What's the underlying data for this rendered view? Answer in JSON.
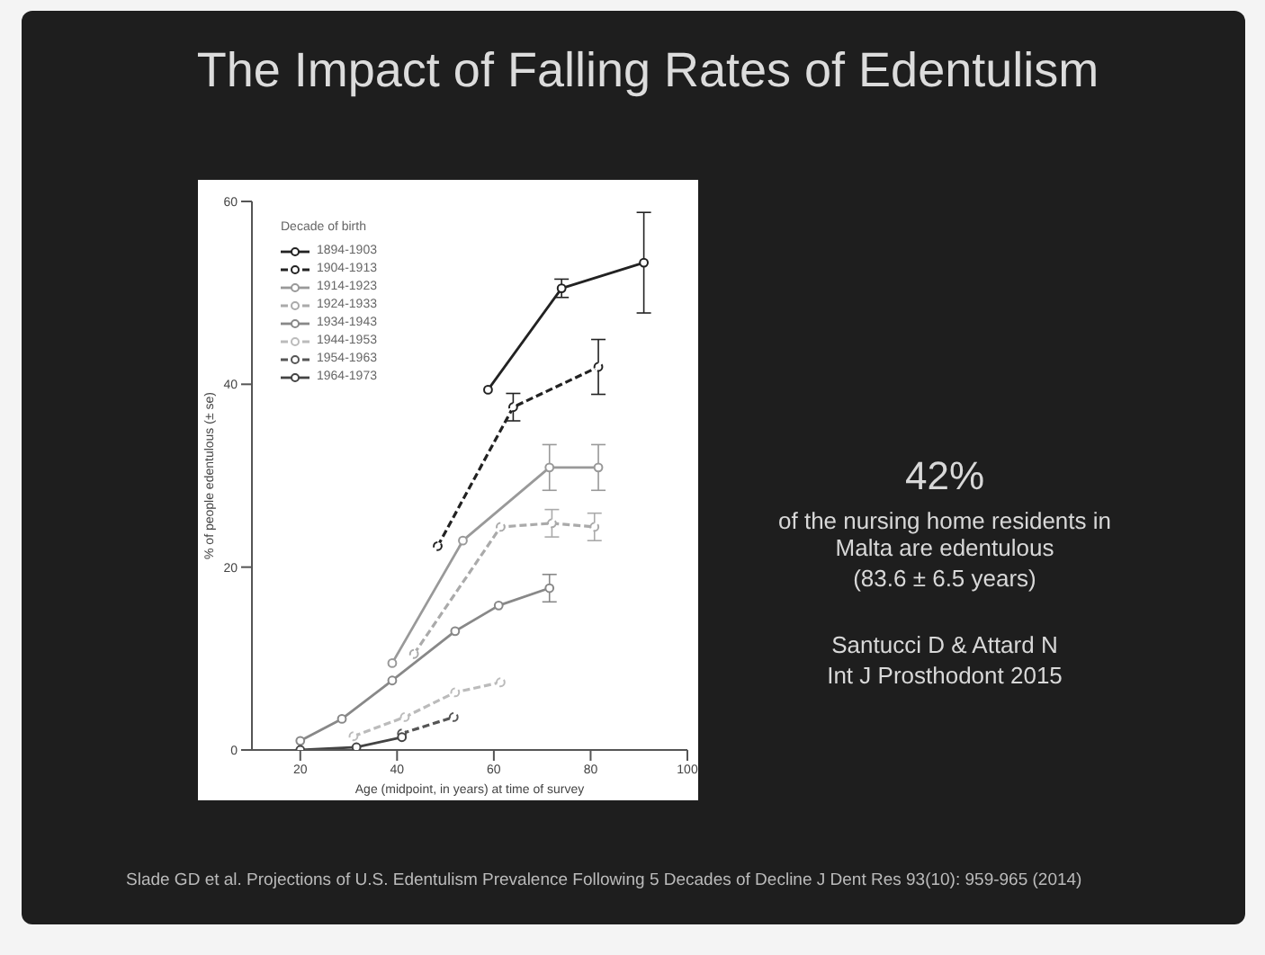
{
  "chart_data": {
    "type": "line",
    "title": "The Impact of Falling Rates of Edentulism",
    "xlabel": "Age (midpoint, in years) at time of survey",
    "ylabel": "% of people edentulous (± se)",
    "legend_title": "Decade of birth",
    "legend": "top left",
    "marker": "circle",
    "xlim": [
      10,
      100
    ],
    "xticks": [
      20,
      40,
      60,
      80,
      100
    ],
    "ylim": [
      0,
      60
    ],
    "yticks": [
      0,
      20,
      40,
      60
    ],
    "series": [
      {
        "name": "1894-1903",
        "color": "#222222",
        "line_style": "solid",
        "x": [
          58.8,
          74,
          91
        ],
        "values": [
          39.4,
          50.5,
          53.3
        ],
        "errors": [
          null,
          1,
          5.5
        ]
      },
      {
        "name": "1904-1913",
        "color": "#222222",
        "line_style": "dashed",
        "x": [
          48.4,
          64,
          81.6
        ],
        "values": [
          22.3,
          37.5,
          41.9
        ],
        "errors": [
          null,
          1.5,
          3
        ]
      },
      {
        "name": "1914-1923",
        "color": "#999999",
        "line_style": "solid",
        "x": [
          39,
          53.6,
          71.5,
          81.6
        ],
        "values": [
          9.5,
          22.9,
          30.9,
          30.9
        ],
        "errors": [
          null,
          null,
          2.5,
          2.5
        ]
      },
      {
        "name": "1924-1933",
        "color": "#aaaaaa",
        "line_style": "dashed",
        "x": [
          43.5,
          61.4,
          72,
          80.8
        ],
        "values": [
          10.5,
          24.4,
          24.8,
          24.4
        ],
        "errors": [
          null,
          null,
          1.5,
          1.5
        ]
      },
      {
        "name": "1934-1943",
        "color": "#888888",
        "line_style": "solid",
        "x": [
          20,
          28.6,
          39,
          52,
          61,
          71.5
        ],
        "values": [
          1,
          3.4,
          7.6,
          13,
          15.8,
          17.7
        ],
        "errors": [
          null,
          null,
          null,
          null,
          null,
          1.5
        ]
      },
      {
        "name": "1944-1953",
        "color": "#bbbbbb",
        "line_style": "dashed",
        "x": [
          31,
          41.6,
          52,
          61.4
        ],
        "values": [
          1.5,
          3.6,
          6.3,
          7.4
        ],
        "errors": [
          null,
          null,
          null,
          null
        ]
      },
      {
        "name": "1954-1963",
        "color": "#555555",
        "line_style": "dashed",
        "x": [
          41,
          51.7
        ],
        "values": [
          1.8,
          3.6
        ],
        "errors": [
          null,
          null
        ]
      },
      {
        "name": "1964-1973",
        "color": "#444444",
        "line_style": "solid",
        "x": [
          20,
          31.6,
          41
        ],
        "values": [
          0,
          0.3,
          1.4
        ],
        "errors": [
          null,
          null,
          null
        ]
      }
    ],
    "annotations": [
      "42%",
      "of the nursing home residents in Malta are edentulous",
      "(83.6 ± 6.5 years)",
      "Santucci D & Attard N",
      "Int J Prosthodont 2015",
      "Slade GD et al. Projections of U.S. Edentulism Prevalence Following 5 Decades of Decline J Dent Res  93(10): 959-965 (2014)"
    ]
  }
}
